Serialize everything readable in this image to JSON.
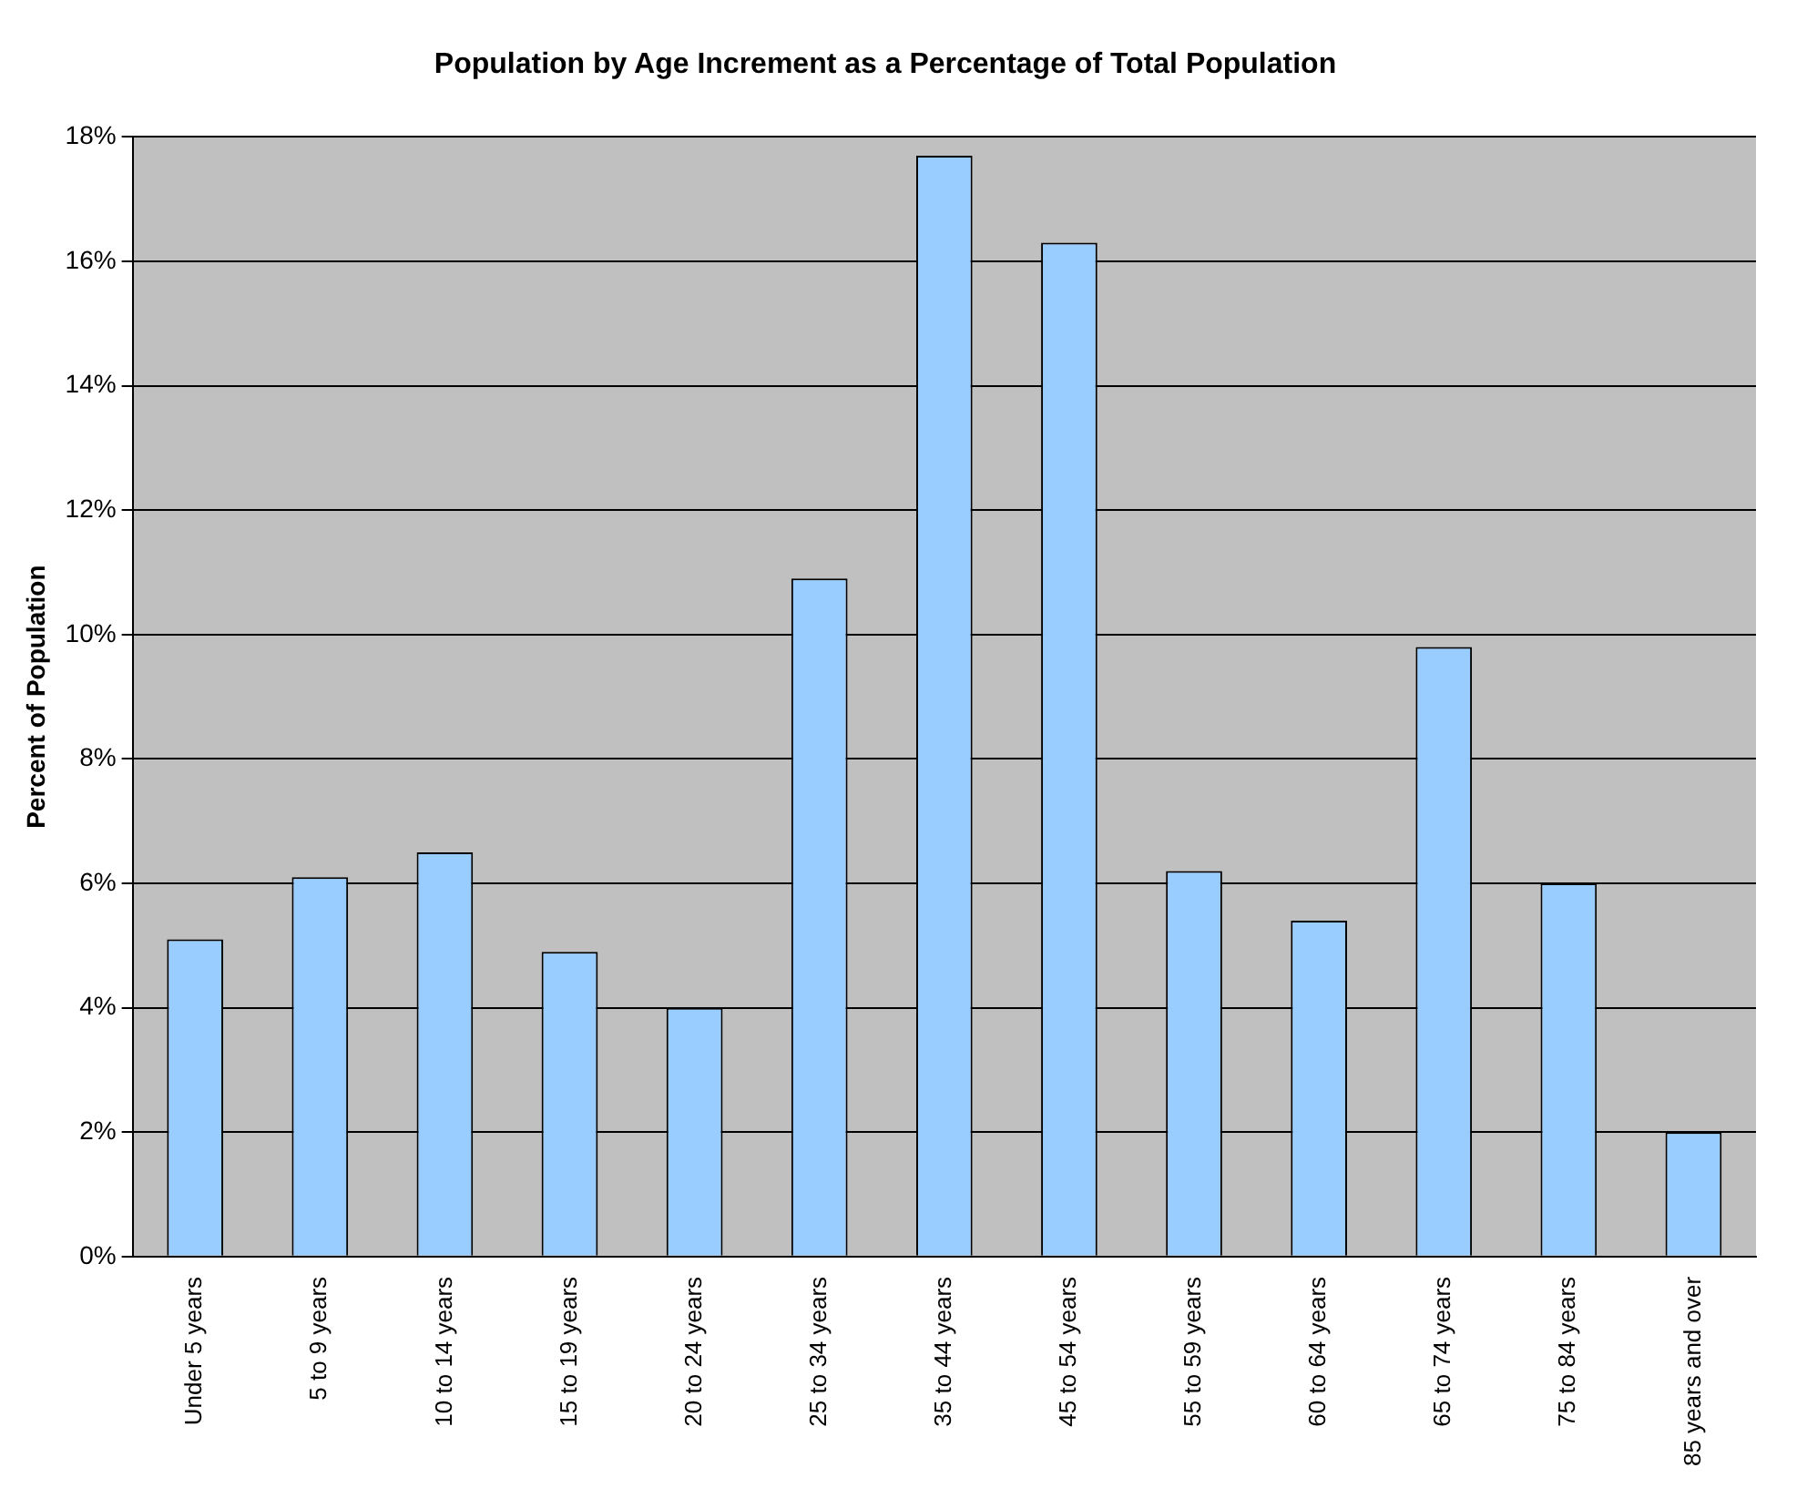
{
  "chart_data": {
    "type": "bar",
    "title": "Population by Age Increment as a Percentage of Total Population",
    "ylabel": "Percent of Population",
    "categories": [
      "Under 5 years",
      "5 to 9 years",
      "10 to 14 years",
      "15 to 19 years",
      "20 to 24 years",
      "25 to 34 years",
      "35 to 44 years",
      "45 to 54 years",
      "55 to 59 years",
      "60 to 64 years",
      "65 to 74 years",
      "75 to 84 years",
      "85 years and over"
    ],
    "values": [
      5.1,
      6.1,
      6.5,
      4.9,
      4.0,
      10.9,
      17.7,
      16.3,
      6.2,
      5.4,
      9.8,
      6.0,
      2.0
    ],
    "color": "#99ccff",
    "ylim": [
      0,
      18
    ],
    "yticks": [
      {
        "value": 0,
        "label": "0%"
      },
      {
        "value": 2,
        "label": "2%"
      },
      {
        "value": 4,
        "label": "4%"
      },
      {
        "value": 6,
        "label": "6%"
      },
      {
        "value": 8,
        "label": "8%"
      },
      {
        "value": 10,
        "label": "10%"
      },
      {
        "value": 12,
        "label": "12%"
      },
      {
        "value": 14,
        "label": "14%"
      },
      {
        "value": 16,
        "label": "16%"
      },
      {
        "value": 18,
        "label": "18%"
      }
    ],
    "grid": "y",
    "legend": false
  }
}
